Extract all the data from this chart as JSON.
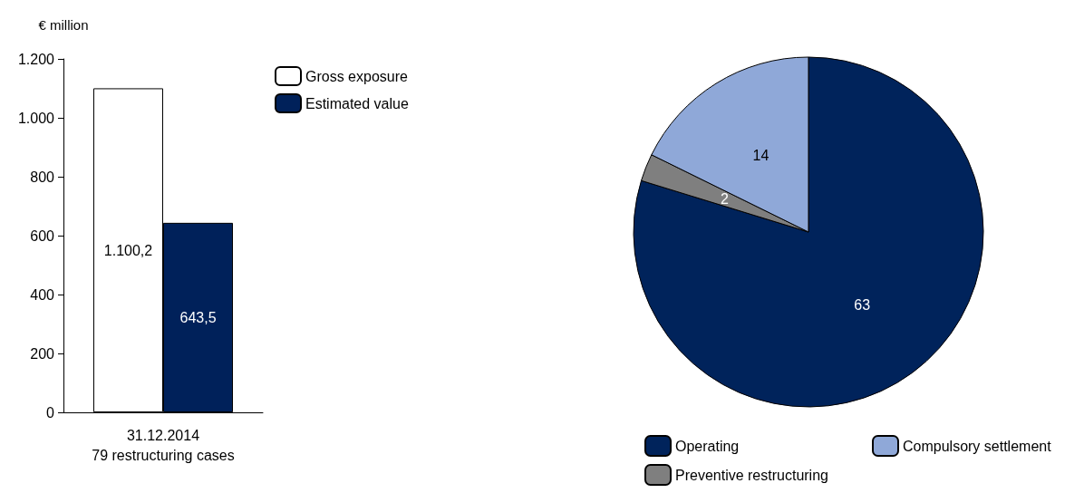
{
  "chart_data": [
    {
      "type": "bar",
      "ylabel": "€ million",
      "categories": [
        "31.12.2014\n79 restructuring cases"
      ],
      "series": [
        {
          "name": "Gross exposure",
          "color": "#ffffff",
          "values": [
            1100.2
          ],
          "value_labels": [
            "1.100,2"
          ]
        },
        {
          "name": "Estimated value",
          "color": "#00215a",
          "values": [
            643.5
          ],
          "value_labels": [
            "643,5"
          ]
        }
      ],
      "ylim": [
        0,
        1200
      ],
      "yticks": [
        0,
        200,
        400,
        600,
        800,
        {
          "value": 1000,
          "label": "1.000"
        },
        {
          "value": 1200,
          "label": "1.200"
        }
      ],
      "grid": false,
      "legend": "top right"
    },
    {
      "type": "pie",
      "categories": [
        "Operating",
        "Preventive restructuring",
        "Compulsory settlement"
      ],
      "values": [
        63,
        2,
        14
      ],
      "colors": [
        "#00235b",
        "#7f7f7f",
        "#8fa8d8"
      ],
      "data_labels": true,
      "legend": "bottom"
    }
  ]
}
